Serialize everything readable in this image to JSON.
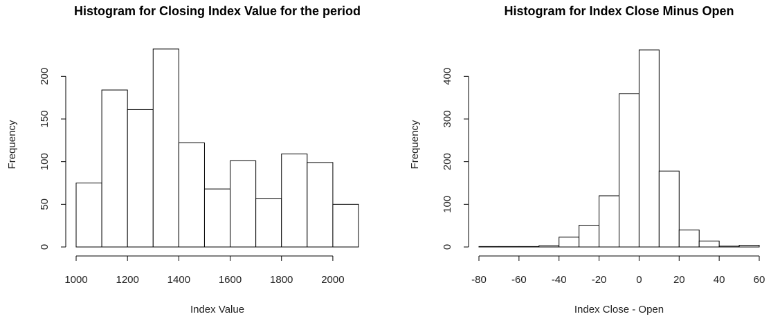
{
  "chart_data": [
    {
      "type": "histogram",
      "title": "Histogram for Closing Index Value for the period",
      "x_label": "Index Value",
      "y_label": "Frequency",
      "bins": [
        1000,
        1100,
        1200,
        1300,
        1400,
        1500,
        1600,
        1700,
        1800,
        1900,
        2000,
        2100
      ],
      "values": [
        75,
        184,
        161,
        232,
        122,
        68,
        101,
        57,
        109,
        99,
        50
      ],
      "color": "#ffffff",
      "xlim": [
        1000,
        2100
      ],
      "xticks": [
        1000,
        1200,
        1400,
        1600,
        1800,
        2000
      ],
      "ylim": [
        0,
        240
      ],
      "yticks": [
        0,
        50,
        100,
        150,
        200
      ]
    },
    {
      "type": "histogram",
      "title": "Histogram for Index Close Minus Open",
      "x_label": "Index Close - Open",
      "y_label": "Frequency",
      "bins": [
        -80,
        -70,
        -60,
        -50,
        -40,
        -30,
        -20,
        -10,
        0,
        10,
        20,
        30,
        40,
        50,
        60
      ],
      "values": [
        1,
        1,
        1,
        3,
        23,
        51,
        120,
        359,
        462,
        178,
        40,
        14,
        2,
        4
      ],
      "color": "#ffffff",
      "xlim": [
        -80,
        60
      ],
      "xticks": [
        -80,
        -60,
        -40,
        -20,
        0,
        20,
        40,
        60
      ],
      "ylim": [
        0,
        480
      ],
      "yticks": [
        0,
        100,
        200,
        300,
        400
      ]
    }
  ]
}
